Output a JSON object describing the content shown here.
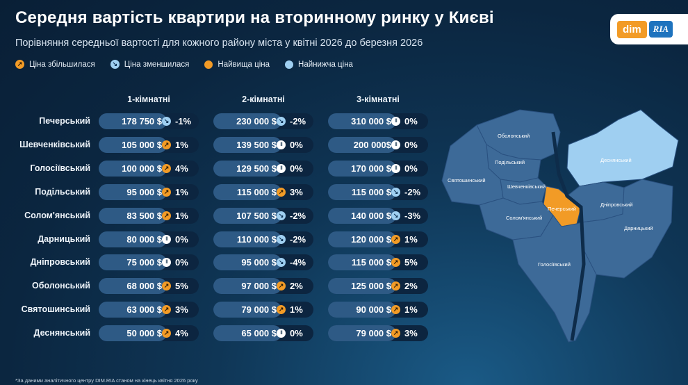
{
  "title": "Середня вартість квартири на вторинному ринку у Києві",
  "subtitle": "Порівняння середньої вартості для кожного району міста у квітні 2026 до березня 2026",
  "legend": [
    {
      "label": "Ціна збільшилася",
      "icon": "arrow-up-icon",
      "color": "#f29b26"
    },
    {
      "label": "Ціна зменшилася",
      "icon": "arrow-down-icon",
      "color": "#9fcff1"
    },
    {
      "label": "Найвища ціна",
      "icon": "dot-icon",
      "color": "#f29b26"
    },
    {
      "label": "Найнижча ціна",
      "icon": "dot-icon",
      "color": "#9fcff1"
    }
  ],
  "logo": {
    "dim": "dim",
    "ria": "RIA"
  },
  "colors": {
    "up": "#f29b26",
    "down": "#9fcff1",
    "same": "#ffffff",
    "map_default": "#3d6a98",
    "map_highest": "#f29b26",
    "map_lowest": "#9fcff1"
  },
  "chart_data": {
    "type": "table",
    "columns": [
      "1-кімнатні",
      "2-кімнатні",
      "3-кімнатні"
    ],
    "rows": [
      {
        "district": "Печерський",
        "cells": [
          {
            "price": "178 750 $",
            "change": "-1%",
            "trend": "down"
          },
          {
            "price": "230 000 $",
            "change": "-2%",
            "trend": "down"
          },
          {
            "price": "310 000 $",
            "change": "0%",
            "trend": "same"
          }
        ]
      },
      {
        "district": "Шевченківський",
        "cells": [
          {
            "price": "105 000 $",
            "change": "1%",
            "trend": "up"
          },
          {
            "price": "139 500 $",
            "change": "0%",
            "trend": "same"
          },
          {
            "price": "200 000$",
            "change": "0%",
            "trend": "same"
          }
        ]
      },
      {
        "district": "Голосіївський",
        "cells": [
          {
            "price": "100 000 $",
            "change": "4%",
            "trend": "up"
          },
          {
            "price": "129 500 $",
            "change": "0%",
            "trend": "same"
          },
          {
            "price": "170 000 $",
            "change": "0%",
            "trend": "same"
          }
        ]
      },
      {
        "district": "Подільський",
        "cells": [
          {
            "price": "95 000 $",
            "change": "1%",
            "trend": "up"
          },
          {
            "price": "115 000 $",
            "change": "3%",
            "trend": "up"
          },
          {
            "price": "115 000 $",
            "change": "-2%",
            "trend": "down"
          }
        ]
      },
      {
        "district": "Солом'янський",
        "cells": [
          {
            "price": "83 500 $",
            "change": "1%",
            "trend": "up"
          },
          {
            "price": "107 500 $",
            "change": "-2%",
            "trend": "down"
          },
          {
            "price": "140 000 $",
            "change": "-3%",
            "trend": "down"
          }
        ]
      },
      {
        "district": "Дарницький",
        "cells": [
          {
            "price": "80 000 $",
            "change": "0%",
            "trend": "same"
          },
          {
            "price": "110 000 $",
            "change": "-2%",
            "trend": "down"
          },
          {
            "price": "120 000 $",
            "change": "1%",
            "trend": "up"
          }
        ]
      },
      {
        "district": "Дніпровський",
        "cells": [
          {
            "price": "75 000 $",
            "change": "0%",
            "trend": "same"
          },
          {
            "price": "95 000 $",
            "change": "-4%",
            "trend": "down"
          },
          {
            "price": "115 000 $",
            "change": "5%",
            "trend": "up"
          }
        ]
      },
      {
        "district": "Оболонський",
        "cells": [
          {
            "price": "68 000 $",
            "change": "5%",
            "trend": "up"
          },
          {
            "price": "97 000 $",
            "change": "2%",
            "trend": "up"
          },
          {
            "price": "125 000 $",
            "change": "2%",
            "trend": "up"
          }
        ]
      },
      {
        "district": "Святошинський",
        "cells": [
          {
            "price": "63 000 $",
            "change": "3%",
            "trend": "up"
          },
          {
            "price": "79 000 $",
            "change": "1%",
            "trend": "up"
          },
          {
            "price": "90 000 $",
            "change": "1%",
            "trend": "up"
          }
        ]
      },
      {
        "district": "Деснянський",
        "cells": [
          {
            "price": "50 000 $",
            "change": "4%",
            "trend": "up"
          },
          {
            "price": "65 000 $",
            "change": "0%",
            "trend": "same"
          },
          {
            "price": "79 000 $",
            "change": "3%",
            "trend": "up"
          }
        ]
      }
    ]
  },
  "map": {
    "districts": [
      {
        "name": "Оболонський",
        "level": "default"
      },
      {
        "name": "Подільський",
        "level": "default"
      },
      {
        "name": "Святошинський",
        "level": "default"
      },
      {
        "name": "Шевченківський",
        "level": "default"
      },
      {
        "name": "Деснянський",
        "level": "lowest"
      },
      {
        "name": "Печерський",
        "level": "highest"
      },
      {
        "name": "Дніпровський",
        "level": "default"
      },
      {
        "name": "Солом'янський",
        "level": "default"
      },
      {
        "name": "Дарницький",
        "level": "default"
      },
      {
        "name": "Голосіївський",
        "level": "default"
      }
    ]
  },
  "footnote": "*За даними аналітичного центру DIM.RIA станом на кінець квітня 2026 року"
}
